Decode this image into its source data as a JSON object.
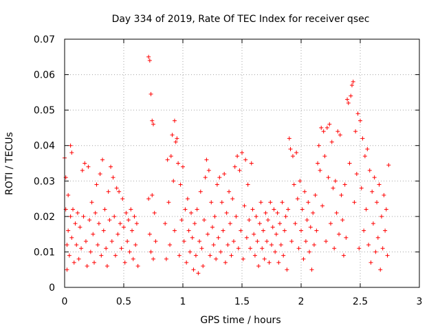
{
  "chart_data": {
    "type": "scatter",
    "title": "Day 334 of 2019, Rate Of TEC Index for receiver qsec",
    "xlabel": "GPS time / hours",
    "ylabel": "ROTI / TECUs",
    "xlim": [
      0,
      3
    ],
    "ylim": [
      0,
      0.07
    ],
    "xticks": [
      0,
      0.5,
      1,
      1.5,
      2,
      2.5,
      3
    ],
    "xtick_labels": [
      "0",
      "0.5",
      "1",
      "1.5",
      "2",
      "2.5",
      "3"
    ],
    "yticks": [
      0,
      0.01,
      0.02,
      0.03,
      0.04,
      0.05,
      0.06,
      0.07
    ],
    "ytick_labels": [
      "0",
      "0.01",
      "0.02",
      "0.03",
      "0.04",
      "0.05",
      "0.06",
      "0.07"
    ],
    "grid": true,
    "marker": "plus",
    "marker_color": "#ff0000",
    "series": [
      {
        "name": "ROTI",
        "points": [
          [
            0.0,
            0.0365
          ],
          [
            0.01,
            0.031
          ],
          [
            0.01,
            0.022
          ],
          [
            0.02,
            0.012
          ],
          [
            0.02,
            0.005
          ],
          [
            0.03,
            0.026
          ],
          [
            0.03,
            0.016
          ],
          [
            0.04,
            0.009
          ],
          [
            0.05,
            0.04
          ],
          [
            0.05,
            0.02
          ],
          [
            0.06,
            0.038
          ],
          [
            0.06,
            0.014
          ],
          [
            0.07,
            0.022
          ],
          [
            0.08,
            0.007
          ],
          [
            0.09,
            0.018
          ],
          [
            0.1,
            0.012
          ],
          [
            0.11,
            0.021
          ],
          [
            0.12,
            0.008
          ],
          [
            0.13,
            0.017
          ],
          [
            0.14,
            0.011
          ],
          [
            0.15,
            0.033
          ],
          [
            0.16,
            0.02
          ],
          [
            0.17,
            0.035
          ],
          [
            0.18,
            0.013
          ],
          [
            0.19,
            0.006
          ],
          [
            0.2,
            0.034
          ],
          [
            0.21,
            0.019
          ],
          [
            0.22,
            0.01
          ],
          [
            0.23,
            0.024
          ],
          [
            0.24,
            0.015
          ],
          [
            0.25,
            0.007
          ],
          [
            0.26,
            0.021
          ],
          [
            0.27,
            0.029
          ],
          [
            0.28,
            0.012
          ],
          [
            0.29,
            0.018
          ],
          [
            0.3,
            0.032
          ],
          [
            0.31,
            0.009
          ],
          [
            0.32,
            0.036
          ],
          [
            0.33,
            0.016
          ],
          [
            0.34,
            0.022
          ],
          [
            0.35,
            0.011
          ],
          [
            0.36,
            0.006
          ],
          [
            0.37,
            0.027
          ],
          [
            0.38,
            0.019
          ],
          [
            0.39,
            0.034
          ],
          [
            0.4,
            0.013
          ],
          [
            0.41,
            0.031
          ],
          [
            0.42,
            0.02
          ],
          [
            0.43,
            0.009
          ],
          [
            0.44,
            0.028
          ],
          [
            0.45,
            0.015
          ],
          [
            0.46,
            0.027
          ],
          [
            0.47,
            0.018
          ],
          [
            0.48,
            0.011
          ],
          [
            0.49,
            0.025
          ],
          [
            0.5,
            0.017
          ],
          [
            0.51,
            0.007
          ],
          [
            0.52,
            0.021
          ],
          [
            0.53,
            0.013
          ],
          [
            0.54,
            0.019
          ],
          [
            0.55,
            0.01
          ],
          [
            0.56,
            0.022
          ],
          [
            0.57,
            0.016
          ],
          [
            0.58,
            0.008
          ],
          [
            0.59,
            0.02
          ],
          [
            0.6,
            0.012
          ],
          [
            0.61,
            0.018
          ],
          [
            0.62,
            0.006
          ],
          [
            0.71,
            0.065
          ],
          [
            0.71,
            0.025
          ],
          [
            0.72,
            0.064
          ],
          [
            0.72,
            0.015
          ],
          [
            0.73,
            0.0545
          ],
          [
            0.73,
            0.01
          ],
          [
            0.74,
            0.047
          ],
          [
            0.74,
            0.026
          ],
          [
            0.75,
            0.046
          ],
          [
            0.75,
            0.008
          ],
          [
            0.76,
            0.021
          ],
          [
            0.77,
            0.013
          ],
          [
            0.85,
            0.018
          ],
          [
            0.86,
            0.008
          ],
          [
            0.87,
            0.036
          ],
          [
            0.88,
            0.024
          ],
          [
            0.89,
            0.012
          ],
          [
            0.9,
            0.037
          ],
          [
            0.91,
            0.043
          ],
          [
            0.92,
            0.03
          ],
          [
            0.93,
            0.047
          ],
          [
            0.93,
            0.016
          ],
          [
            0.94,
            0.041
          ],
          [
            0.95,
            0.042
          ],
          [
            0.96,
            0.035
          ],
          [
            0.97,
            0.009
          ],
          [
            0.98,
            0.029
          ],
          [
            0.99,
            0.019
          ],
          [
            1.0,
            0.034
          ],
          [
            1.01,
            0.013
          ],
          [
            1.02,
            0.022
          ],
          [
            1.03,
            0.007
          ],
          [
            1.04,
            0.025
          ],
          [
            1.05,
            0.016
          ],
          [
            1.06,
            0.01
          ],
          [
            1.07,
            0.021
          ],
          [
            1.08,
            0.014
          ],
          [
            1.09,
            0.005
          ],
          [
            1.1,
            0.018
          ],
          [
            1.11,
            0.009
          ],
          [
            1.12,
            0.022
          ],
          [
            1.13,
            0.004
          ],
          [
            1.14,
            0.013
          ],
          [
            1.15,
            0.027
          ],
          [
            1.16,
            0.011
          ],
          [
            1.17,
            0.006
          ],
          [
            1.18,
            0.019
          ],
          [
            1.19,
            0.031
          ],
          [
            1.2,
            0.036
          ],
          [
            1.21,
            0.015
          ],
          [
            1.22,
            0.033
          ],
          [
            1.23,
            0.009
          ],
          [
            1.24,
            0.024
          ],
          [
            1.25,
            0.017
          ],
          [
            1.26,
            0.012
          ],
          [
            1.27,
            0.02
          ],
          [
            1.28,
            0.008
          ],
          [
            1.29,
            0.029
          ],
          [
            1.3,
            0.014
          ],
          [
            1.31,
            0.031
          ],
          [
            1.32,
            0.01
          ],
          [
            1.33,
            0.024
          ],
          [
            1.34,
            0.016
          ],
          [
            1.35,
            0.032
          ],
          [
            1.36,
            0.007
          ],
          [
            1.37,
            0.021
          ],
          [
            1.38,
            0.012
          ],
          [
            1.39,
            0.027
          ],
          [
            1.4,
            0.018
          ],
          [
            1.41,
            0.009
          ],
          [
            1.42,
            0.025
          ],
          [
            1.43,
            0.013
          ],
          [
            1.44,
            0.034
          ],
          [
            1.45,
            0.02
          ],
          [
            1.46,
            0.037
          ],
          [
            1.47,
            0.011
          ],
          [
            1.48,
            0.033
          ],
          [
            1.49,
            0.016
          ],
          [
            1.5,
            0.038
          ],
          [
            1.51,
            0.008
          ],
          [
            1.52,
            0.023
          ],
          [
            1.53,
            0.036
          ],
          [
            1.54,
            0.014
          ],
          [
            1.55,
            0.029
          ],
          [
            1.56,
            0.019
          ],
          [
            1.57,
            0.011
          ],
          [
            1.58,
            0.035
          ],
          [
            1.59,
            0.022
          ],
          [
            1.6,
            0.015
          ],
          [
            1.61,
            0.009
          ],
          [
            1.62,
            0.02
          ],
          [
            1.63,
            0.013
          ],
          [
            1.64,
            0.006
          ],
          [
            1.65,
            0.018
          ],
          [
            1.66,
            0.024
          ],
          [
            1.67,
            0.011
          ],
          [
            1.68,
            0.016
          ],
          [
            1.69,
            0.008
          ],
          [
            1.7,
            0.021
          ],
          [
            1.71,
            0.013
          ],
          [
            1.72,
            0.019
          ],
          [
            1.73,
            0.007
          ],
          [
            1.74,
            0.024
          ],
          [
            1.75,
            0.012
          ],
          [
            1.76,
            0.017
          ],
          [
            1.77,
            0.022
          ],
          [
            1.78,
            0.01
          ],
          [
            1.79,
            0.015
          ],
          [
            1.8,
            0.021
          ],
          [
            1.81,
            0.007
          ],
          [
            1.82,
            0.018
          ],
          [
            1.83,
            0.012
          ],
          [
            1.84,
            0.024
          ],
          [
            1.85,
            0.009
          ],
          [
            1.86,
            0.016
          ],
          [
            1.87,
            0.02
          ],
          [
            1.88,
            0.005
          ],
          [
            1.89,
            0.022
          ],
          [
            1.9,
            0.042
          ],
          [
            1.91,
            0.039
          ],
          [
            1.92,
            0.013
          ],
          [
            1.93,
            0.037
          ],
          [
            1.94,
            0.029
          ],
          [
            1.95,
            0.018
          ],
          [
            1.96,
            0.038
          ],
          [
            1.97,
            0.025
          ],
          [
            1.98,
            0.011
          ],
          [
            1.99,
            0.03
          ],
          [
            2.0,
            0.016
          ],
          [
            2.01,
            0.022
          ],
          [
            2.02,
            0.008
          ],
          [
            2.03,
            0.027
          ],
          [
            2.04,
            0.013
          ],
          [
            2.05,
            0.019
          ],
          [
            2.06,
            0.024
          ],
          [
            2.07,
            0.01
          ],
          [
            2.08,
            0.017
          ],
          [
            2.09,
            0.005
          ],
          [
            2.1,
            0.021
          ],
          [
            2.11,
            0.012
          ],
          [
            2.12,
            0.026
          ],
          [
            2.13,
            0.016
          ],
          [
            2.14,
            0.035
          ],
          [
            2.15,
            0.04
          ],
          [
            2.16,
            0.033
          ],
          [
            2.17,
            0.045
          ],
          [
            2.18,
            0.023
          ],
          [
            2.19,
            0.044
          ],
          [
            2.2,
            0.037
          ],
          [
            2.21,
            0.013
          ],
          [
            2.22,
            0.045
          ],
          [
            2.23,
            0.031
          ],
          [
            2.24,
            0.046
          ],
          [
            2.25,
            0.018
          ],
          [
            2.26,
            0.041
          ],
          [
            2.27,
            0.028
          ],
          [
            2.28,
            0.011
          ],
          [
            2.29,
            0.03
          ],
          [
            2.3,
            0.021
          ],
          [
            2.31,
            0.044
          ],
          [
            2.32,
            0.015
          ],
          [
            2.33,
            0.043
          ],
          [
            2.34,
            0.026
          ],
          [
            2.35,
            0.019
          ],
          [
            2.36,
            0.009
          ],
          [
            2.37,
            0.029
          ],
          [
            2.38,
            0.014
          ],
          [
            2.39,
            0.053
          ],
          [
            2.4,
            0.052
          ],
          [
            2.41,
            0.035
          ],
          [
            2.42,
            0.054
          ],
          [
            2.43,
            0.057
          ],
          [
            2.44,
            0.058
          ],
          [
            2.45,
            0.024
          ],
          [
            2.46,
            0.044
          ],
          [
            2.47,
            0.032
          ],
          [
            2.48,
            0.049
          ],
          [
            2.49,
            0.011
          ],
          [
            2.5,
            0.047
          ],
          [
            2.51,
            0.028
          ],
          [
            2.52,
            0.042
          ],
          [
            2.53,
            0.016
          ],
          [
            2.54,
            0.037
          ],
          [
            2.55,
            0.022
          ],
          [
            2.56,
            0.039
          ],
          [
            2.57,
            0.012
          ],
          [
            2.58,
            0.033
          ],
          [
            2.59,
            0.007
          ],
          [
            2.6,
            0.027
          ],
          [
            2.61,
            0.018
          ],
          [
            2.62,
            0.031
          ],
          [
            2.63,
            0.01
          ],
          [
            2.64,
            0.024
          ],
          [
            2.65,
            0.014
          ],
          [
            2.66,
            0.029
          ],
          [
            2.67,
            0.005
          ],
          [
            2.68,
            0.02
          ],
          [
            2.69,
            0.011
          ],
          [
            2.7,
            0.026
          ],
          [
            2.71,
            0.016
          ],
          [
            2.72,
            0.022
          ],
          [
            2.73,
            0.009
          ],
          [
            2.74,
            0.0345
          ]
        ]
      }
    ]
  }
}
